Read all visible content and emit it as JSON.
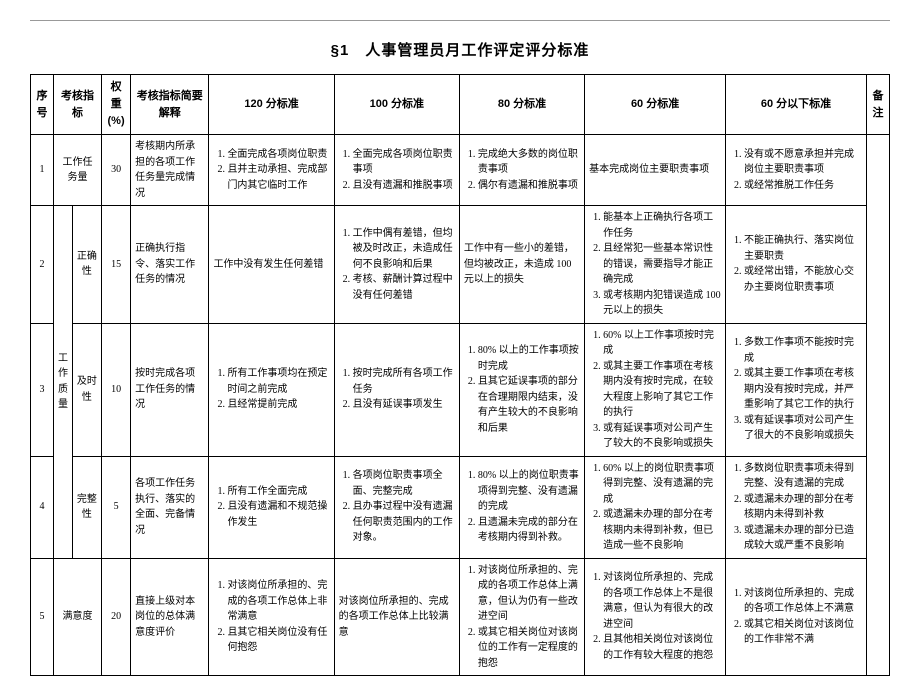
{
  "title": "§1　人事管理员月工作评定评分标准",
  "headers": {
    "seq": "序号",
    "indicator": "考核指标",
    "weight": "权重(%)",
    "explain": "考核指标简要解释",
    "s120": "120 分标准",
    "s100": "100 分标准",
    "s80": "80 分标准",
    "s60": "60 分标准",
    "sBelow": "60 分以下标准",
    "remark": "备注"
  },
  "rows": [
    {
      "seq": "1",
      "ind_a": "",
      "ind_b": "工作任务量",
      "weight": "30",
      "explain": "考核期内所承担的各项工作任务量完成情况",
      "s120": [
        "全面完成各项岗位职责",
        "且并主动承担、完成部门内其它临时工作"
      ],
      "s100": [
        "全面完成各项岗位职责事项",
        "且没有遗漏和推脱事项"
      ],
      "s80": [
        "完成绝大多数的岗位职责事项",
        "偶尔有遗漏和推脱事项"
      ],
      "s60": "基本完成岗位主要职责事项",
      "sBelow": [
        "没有或不愿意承担并完成岗位主要职责事项",
        "或经常推脱工作任务"
      ]
    },
    {
      "seq": "2",
      "ind_a": "工作质量",
      "ind_b": "正确性",
      "weight": "15",
      "explain": "正确执行指令、落实工作任务的情况",
      "s120": "工作中没有发生任何差错",
      "s100": [
        "工作中偶有差错，但均被及时改正，未造成任何不良影响和后果",
        "考核、薪酬计算过程中没有任何差错"
      ],
      "s80": "工作中有一些小的差错，但均被改正，未造成 100 元以上的损失",
      "s60": [
        "能基本上正确执行各项工作任务",
        "且经常犯一些基本常识性的错误，需要指导才能正确完成",
        "或考核期内犯错误造成 100 元以上的损失"
      ],
      "sBelow": [
        "不能正确执行、落实岗位主要职责",
        "或经常出错，不能放心交办主要岗位职责事项"
      ]
    },
    {
      "seq": "3",
      "ind_a": "",
      "ind_b": "及时性",
      "weight": "10",
      "explain": "按时完成各项工作任务的情况",
      "s120": [
        "所有工作事项均在预定时间之前完成",
        "且经常提前完成"
      ],
      "s100": [
        "按时完成所有各项工作任务",
        "且没有延误事项发生"
      ],
      "s80": [
        "80% 以上的工作事项按时完成",
        "且其它延误事项的部分在合理期限内结束，没有产生较大的不良影响和后果"
      ],
      "s60": [
        "60% 以上工作事项按时完成",
        "或其主要工作事项在考核期内没有按时完成，在较大程度上影响了其它工作的执行",
        "或有延误事项对公司产生了较大的不良影响或损失"
      ],
      "sBelow": [
        "多数工作事项不能按时完成",
        "或其主要工作事项在考核期内没有按时完成，并严重影响了其它工作的执行",
        "或有延误事项对公司产生了很大的不良影响或损失"
      ]
    },
    {
      "seq": "4",
      "ind_a": "",
      "ind_b": "完整性",
      "weight": "5",
      "explain": "各项工作任务执行、落实的全面、完备情况",
      "s120": [
        "所有工作全面完成",
        "且没有遗漏和不规范操作发生"
      ],
      "s100": [
        "各项岗位职责事项全面、完整完成",
        "且办事过程中没有遗漏任何职责范围内的工作对象。"
      ],
      "s80": [
        "80% 以上的岗位职责事项得到完整、没有遗漏的完成",
        "且遗漏未完成的部分在考核期内得到补救。"
      ],
      "s60": [
        "60% 以上的岗位职责事项得到完整、没有遗漏的完成",
        "或遗漏未办理的部分在考核期内未得到补救，但已造成一些不良影响"
      ],
      "sBelow": [
        "多数岗位职责事项未得到完整、没有遗漏的完成",
        "或遗漏未办理的部分在考核期内未得到补救",
        "或遗漏未办理的部分已造成较大或严重不良影响"
      ]
    },
    {
      "seq": "5",
      "ind_a": "",
      "ind_b": "满意度",
      "weight": "20",
      "explain": "直接上级对本岗位的总体满意度评价",
      "s120": [
        "对该岗位所承担的、完成的各项工作总体上非常满意",
        "且其它相关岗位没有任何抱怨"
      ],
      "s100": "对该岗位所承担的、完成的各项工作总体上比较满意",
      "s80": [
        "对该岗位所承担的、完成的各项工作总体上满意，但认为仍有一些改进空间",
        "或其它相关岗位对该岗位的工作有一定程度的抱怨"
      ],
      "s60": [
        "对该岗位所承担的、完成的各项工作总体上不是很满意，但认为有很大的改进空间",
        "且其他相关岗位对该岗位的工作有较大程度的抱怨"
      ],
      "sBelow": [
        "对该岗位所承担的、完成的各项工作总体上不满意",
        "或其它相关岗位对该岗位的工作非常不满"
      ]
    }
  ]
}
